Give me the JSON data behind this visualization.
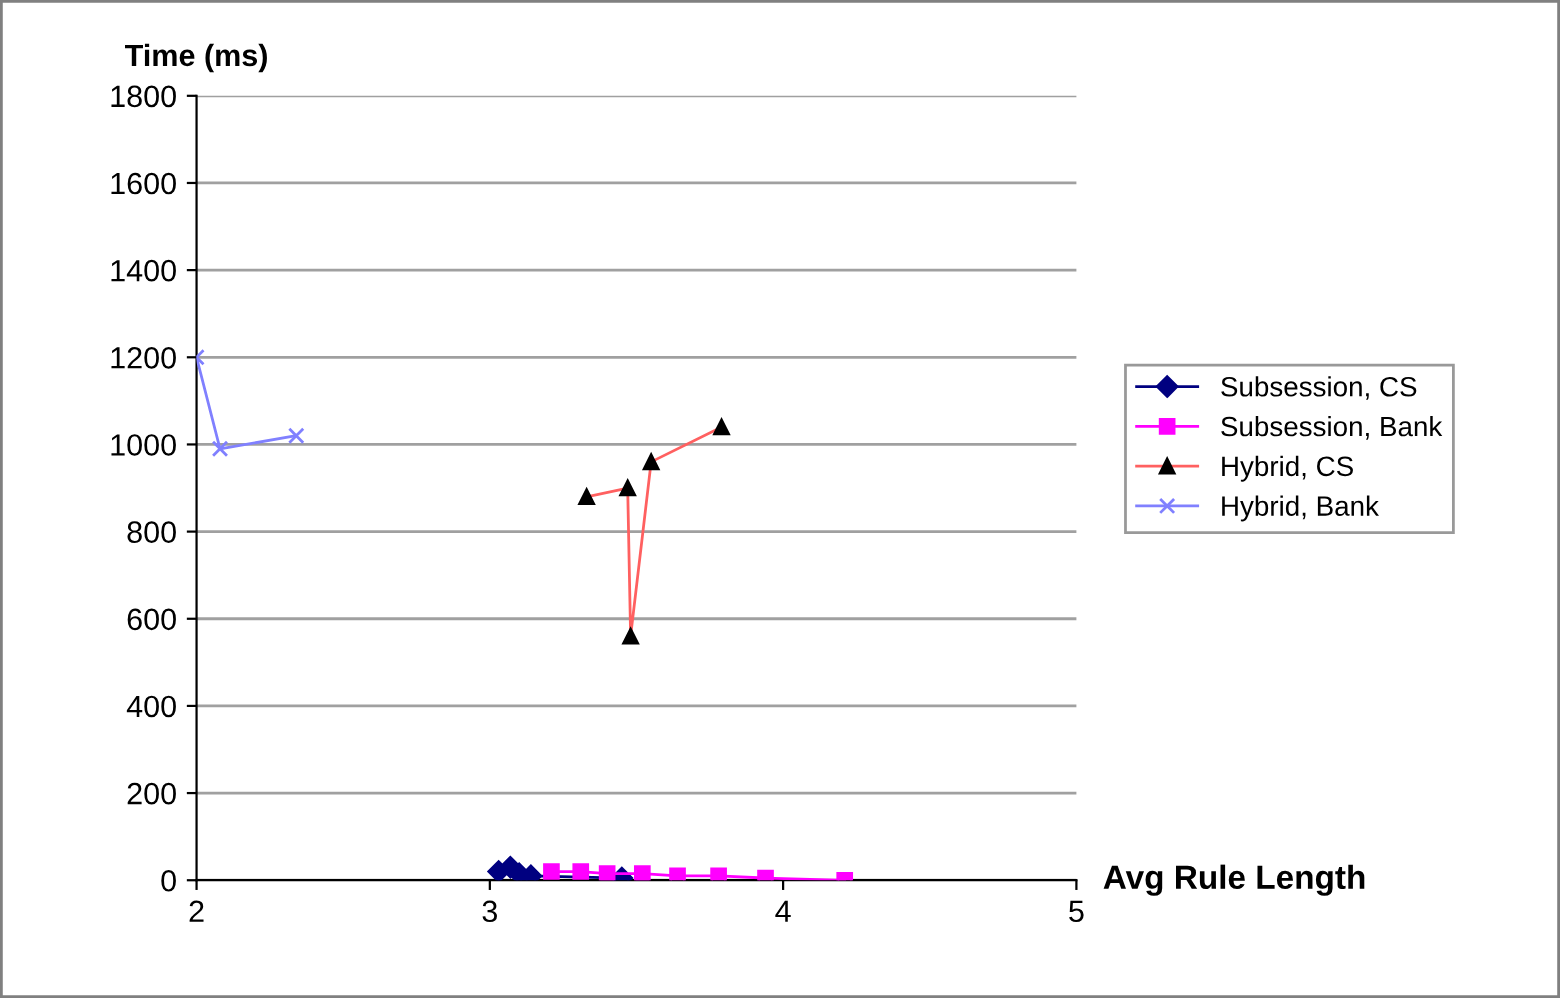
{
  "chart_data": {
    "type": "line",
    "xlabel": "Avg Rule Length",
    "ylabel": "Time (ms)",
    "xlim": [
      2,
      5
    ],
    "xticks": [
      2,
      3,
      4,
      5
    ],
    "ylim": [
      0,
      1800
    ],
    "yticks": [
      0,
      200,
      400,
      600,
      800,
      1000,
      1200,
      1400,
      1600,
      1800
    ],
    "grid": "y",
    "legend": "right",
    "series": [
      {
        "name": "Subsession, CS",
        "color": "#000080",
        "marker": "diamond",
        "x": [
          3.03,
          3.07,
          3.1,
          3.14,
          3.45
        ],
        "values": [
          20,
          30,
          15,
          10,
          5
        ]
      },
      {
        "name": "Subsession, Bank",
        "color": "#ff00ff",
        "marker": "square",
        "x": [
          3.21,
          3.31,
          3.4,
          3.52,
          3.64,
          3.78,
          3.94,
          4.21
        ],
        "values": [
          20,
          20,
          15,
          15,
          10,
          10,
          5,
          0
        ]
      },
      {
        "name": "Hybrid, CS",
        "color": "#ff6060",
        "marker": "triangle",
        "x": [
          3.33,
          3.47,
          3.48,
          3.55,
          3.79
        ],
        "values": [
          880,
          900,
          560,
          960,
          1040
        ]
      },
      {
        "name": "Hybrid, Bank",
        "color": "#8080ff",
        "marker": "cross",
        "x": [
          2.0,
          2.08,
          2.34
        ],
        "values": [
          1200,
          990,
          1020
        ]
      }
    ]
  }
}
